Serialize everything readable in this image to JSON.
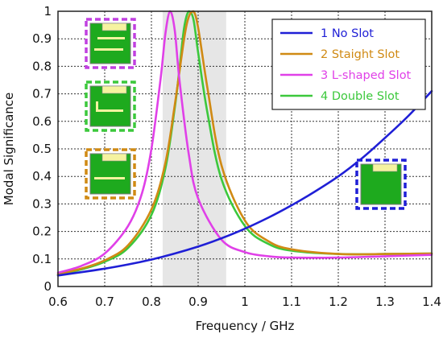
{
  "chart_data": {
    "type": "line",
    "title": "",
    "xlabel": "Frequency / GHz",
    "ylabel": "Modal Significance",
    "xlim": [
      0.6,
      1.4
    ],
    "ylim": [
      0,
      1
    ],
    "xticks": [
      "0.6",
      "0.7",
      "0.8",
      "0.9",
      "1",
      "1.1",
      "1.2",
      "1.3",
      "1.4"
    ],
    "yticks": [
      "0",
      "0.1",
      "0.2",
      "0.3",
      "0.4",
      "0.5",
      "0.6",
      "0.7",
      "0.8",
      "0.9",
      "1"
    ],
    "grid": true,
    "legend_position": "top-right",
    "highlight_band": {
      "x_start": 0.824,
      "x_end": 0.96,
      "color": "#e6e6e6"
    },
    "series": [
      {
        "name": "1 No Slot",
        "color": "#1f1fd6",
        "x": [
          0.6,
          0.65,
          0.7,
          0.75,
          0.8,
          0.85,
          0.9,
          0.95,
          1.0,
          1.05,
          1.1,
          1.15,
          1.2,
          1.25,
          1.3,
          1.35,
          1.4
        ],
        "y": [
          0.04,
          0.052,
          0.065,
          0.08,
          0.098,
          0.12,
          0.145,
          0.175,
          0.21,
          0.25,
          0.295,
          0.345,
          0.4,
          0.465,
          0.54,
          0.62,
          0.71
        ]
      },
      {
        "name": "2 Staight Slot",
        "color": "#d08a14",
        "x": [
          0.6,
          0.65,
          0.7,
          0.75,
          0.8,
          0.83,
          0.85,
          0.87,
          0.88,
          0.89,
          0.9,
          0.92,
          0.95,
          1.0,
          1.05,
          1.1,
          1.2,
          1.3,
          1.4
        ],
        "y": [
          0.045,
          0.065,
          0.095,
          0.15,
          0.28,
          0.45,
          0.66,
          0.9,
          0.98,
          1.0,
          0.94,
          0.72,
          0.44,
          0.24,
          0.165,
          0.135,
          0.118,
          0.118,
          0.12
        ]
      },
      {
        "name": "3 L-shaped Slot",
        "color": "#e040e8",
        "x": [
          0.6,
          0.65,
          0.7,
          0.75,
          0.78,
          0.8,
          0.82,
          0.83,
          0.84,
          0.85,
          0.86,
          0.88,
          0.9,
          0.95,
          1.0,
          1.05,
          1.1,
          1.2,
          1.3,
          1.4
        ],
        "y": [
          0.05,
          0.075,
          0.12,
          0.22,
          0.34,
          0.5,
          0.76,
          0.92,
          1.0,
          0.93,
          0.75,
          0.48,
          0.32,
          0.17,
          0.125,
          0.11,
          0.105,
          0.105,
          0.11,
          0.115
        ]
      },
      {
        "name": "4 Double Slot",
        "color": "#3cc83c",
        "x": [
          0.6,
          0.65,
          0.7,
          0.75,
          0.8,
          0.83,
          0.85,
          0.86,
          0.87,
          0.88,
          0.89,
          0.9,
          0.92,
          0.95,
          1.0,
          1.05,
          1.1,
          1.2,
          1.3,
          1.4
        ],
        "y": [
          0.042,
          0.062,
          0.09,
          0.14,
          0.26,
          0.43,
          0.65,
          0.79,
          0.94,
          1.0,
          0.97,
          0.85,
          0.63,
          0.39,
          0.22,
          0.155,
          0.13,
          0.118,
          0.118,
          0.12
        ]
      }
    ]
  },
  "insets": [
    {
      "name": "inset-double-slot-antenna",
      "border_color": "#c040e0"
    },
    {
      "name": "inset-l-shaped-slot-antenna",
      "border_color": "#3cc83c"
    },
    {
      "name": "inset-straight-slot-antenna",
      "border_color": "#d08a14"
    },
    {
      "name": "inset-no-slot-antenna",
      "border_color": "#1f1fd6"
    }
  ]
}
